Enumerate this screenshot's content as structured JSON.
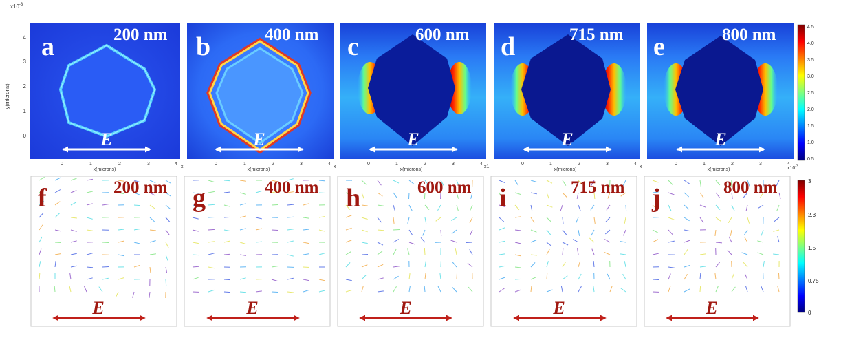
{
  "top_row": {
    "exponent": "x10",
    "exponent_power": "-3",
    "ylabel": "y(microns)",
    "xlabel": "x(microns)",
    "yticks": [
      "4",
      "3",
      "2",
      "1",
      "0"
    ],
    "xticks": [
      "0",
      "1",
      "2",
      "3",
      "4"
    ],
    "panels": [
      {
        "letter": "a",
        "wavelength": "200 nm",
        "field": "E",
        "xunit": "x"
      },
      {
        "letter": "b",
        "wavelength": "400 nm",
        "field": "E",
        "xunit": "x"
      },
      {
        "letter": "c",
        "wavelength": "600 nm",
        "field": "E",
        "xunit": "x1"
      },
      {
        "letter": "d",
        "wavelength": "715 nm",
        "field": "E",
        "xunit": "x"
      },
      {
        "letter": "e",
        "wavelength": "800 nm",
        "field": "E",
        "xunit": "x10",
        "xunit_power": "-3"
      }
    ],
    "colorbar": {
      "ticks": [
        "4.5",
        "4.0",
        "3.5",
        "3.0",
        "2.5",
        "2.0",
        "1.5",
        "1.0",
        "0.5"
      ],
      "min": 0.5,
      "max": 4.5
    }
  },
  "bottom_row": {
    "panels": [
      {
        "letter": "f",
        "wavelength": "200 nm",
        "field": "E"
      },
      {
        "letter": "g",
        "wavelength": "400 nm",
        "field": "E"
      },
      {
        "letter": "h",
        "wavelength": "600 nm",
        "field": "E"
      },
      {
        "letter": "i",
        "wavelength": "715 nm",
        "field": "E"
      },
      {
        "letter": "j",
        "wavelength": "800 nm",
        "field": "E"
      }
    ],
    "colorbar": {
      "ticks": [
        "3",
        "2.3",
        "1.5",
        "0.75",
        "0"
      ],
      "min": 0,
      "max": 3
    }
  },
  "colors": {
    "letter_top": "#ffffff",
    "letter_bottom": "#a01810",
    "arrow_top": "#ffffff",
    "arrow_bottom": "#c0201a",
    "background_field": "#1a3fd6"
  }
}
